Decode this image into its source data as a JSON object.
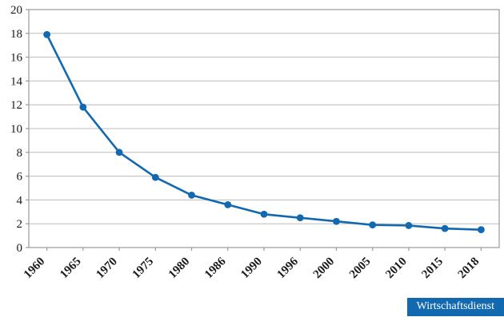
{
  "chart_data": {
    "type": "line",
    "title": "",
    "xlabel": "",
    "ylabel": "",
    "categories": [
      "1960",
      "1965",
      "1970",
      "1975",
      "1980",
      "1986",
      "1990",
      "1996",
      "2000",
      "2005",
      "2010",
      "2015",
      "2018"
    ],
    "values": [
      17.9,
      11.8,
      8.0,
      5.9,
      4.4,
      3.6,
      2.8,
      2.5,
      2.2,
      1.9,
      1.85,
      1.6,
      1.5
    ],
    "ylim": [
      0,
      20
    ],
    "yticks": [
      0,
      2,
      4,
      6,
      8,
      10,
      12,
      14,
      16,
      18,
      20
    ],
    "grid": true,
    "legend": "none",
    "line_color": "#1269b0",
    "marker_color": "#1269b0",
    "grid_color": "#bcbcbc",
    "axis_color": "#9a9a9a",
    "tick_label_color": "#1a1a1a"
  },
  "source": {
    "label": "Wirtschaftsdienst",
    "bg_color": "#1269b0",
    "text_color": "#ffffff"
  }
}
